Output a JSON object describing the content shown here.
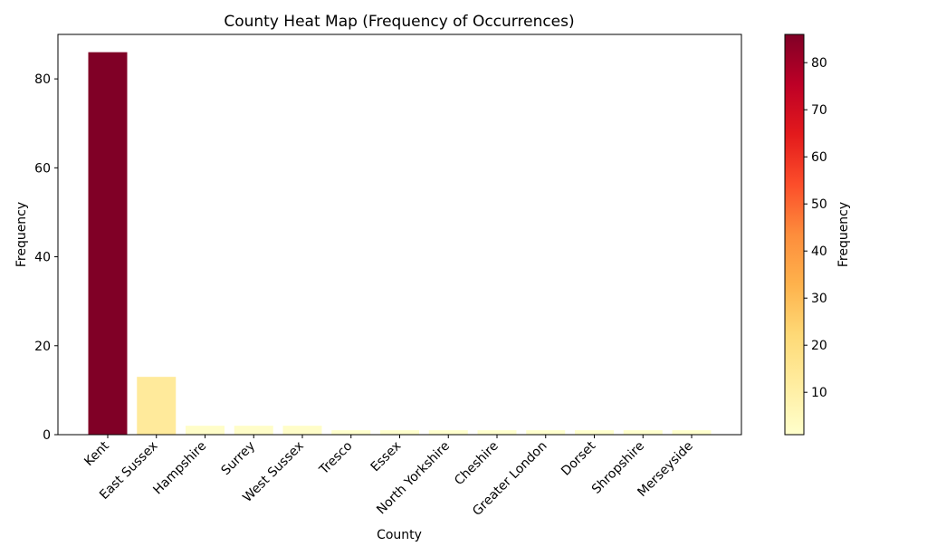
{
  "chart_data": {
    "type": "bar",
    "title": "County Heat Map (Frequency of Occurrences)",
    "xlabel": "County",
    "ylabel": "Frequency",
    "categories": [
      "Kent",
      "East Sussex",
      "Hampshire",
      "Surrey",
      "West Sussex",
      "Tresco",
      "Essex",
      "North Yorkshire",
      "Cheshire",
      "Greater London",
      "Dorset",
      "Shropshire",
      "Merseyside"
    ],
    "values": [
      86,
      13,
      2,
      2,
      2,
      1,
      1,
      1,
      1,
      1,
      1,
      1,
      1
    ],
    "ylim": [
      0,
      90
    ],
    "yticks": [
      0,
      20,
      40,
      60,
      80
    ],
    "grid": false,
    "colormap": "YlOrRd",
    "colorbar": {
      "label": "Frequency",
      "range": [
        1,
        86
      ],
      "ticks": [
        10,
        20,
        30,
        40,
        50,
        60,
        70,
        80
      ]
    }
  }
}
